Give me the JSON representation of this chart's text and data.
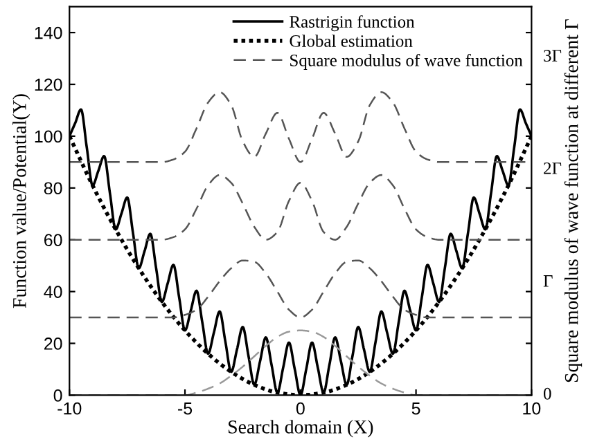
{
  "chart_data": {
    "type": "line",
    "xlabel": "Search domain (X)",
    "ylabel": "Function value/Potential(Y)",
    "y2label": "Square modulus of wave function at different Γ",
    "xlim": [
      -10,
      10
    ],
    "xticks": [
      -10,
      -5,
      0,
      5,
      10
    ],
    "ylim": [
      0,
      150
    ],
    "yticks": [
      0,
      20,
      40,
      60,
      80,
      100,
      120,
      140
    ],
    "annotations": [
      "0",
      "Γ",
      "2Γ",
      "3Γ"
    ],
    "legend": "top right",
    "grid": false,
    "series": [
      {
        "name": "Rastrigin function",
        "color": "#000000",
        "line_style": "solid",
        "x": [
          -10,
          -9.75,
          -9.5,
          -9.25,
          -9,
          -8.75,
          -8.5,
          -8.25,
          -8,
          -7.75,
          -7.5,
          -7.25,
          -7,
          -6.75,
          -6.5,
          -6.25,
          -6,
          -5.75,
          -5.5,
          -5.25,
          -5,
          -4.75,
          -4.5,
          -4.25,
          -4,
          -3.75,
          -3.5,
          -3.25,
          -3,
          -2.75,
          -2.5,
          -2.25,
          -2,
          -1.75,
          -1.5,
          -1.25,
          -1,
          -0.75,
          -0.5,
          -0.25,
          0,
          0.25,
          0.5,
          0.75,
          1,
          1.25,
          1.5,
          1.75,
          2,
          2.25,
          2.5,
          2.75,
          3,
          3.25,
          3.5,
          3.75,
          4,
          4.25,
          4.5,
          4.75,
          5,
          5.25,
          5.5,
          5.75,
          6,
          6.25,
          6.5,
          6.75,
          7,
          7.25,
          7.5,
          7.75,
          8,
          8.25,
          8.5,
          8.75,
          9,
          9.25,
          9.5,
          9.75,
          10
        ],
        "values": [
          100,
          105.1,
          110.3,
          95.6,
          81,
          86.6,
          92.3,
          78.1,
          64,
          70.1,
          76.3,
          62.6,
          49,
          55.6,
          62.3,
          49.1,
          36,
          43.1,
          50.3,
          37.6,
          25,
          32.6,
          40.3,
          28.1,
          16,
          24.1,
          32.3,
          20.6,
          9,
          17.6,
          26.3,
          15.1,
          4,
          13.1,
          22.3,
          11.6,
          1,
          10.6,
          20.3,
          10.1,
          0,
          10.1,
          20.3,
          10.6,
          1,
          11.6,
          22.3,
          13.1,
          4,
          15.1,
          26.3,
          17.6,
          9,
          20.6,
          32.3,
          24.1,
          16,
          28.1,
          40.3,
          32.6,
          25,
          37.6,
          50.3,
          43.1,
          36,
          49.1,
          62.3,
          55.6,
          49,
          62.6,
          76.3,
          70.1,
          64,
          78.1,
          92.3,
          86.6,
          81,
          95.6,
          110.3,
          105.1,
          100
        ]
      },
      {
        "name": "Global estimation",
        "color": "#000000",
        "line_style": "dotted",
        "x": [
          -10,
          -9,
          -8,
          -7,
          -6,
          -5,
          -4,
          -3,
          -2,
          -1,
          0,
          1,
          2,
          3,
          4,
          5,
          6,
          7,
          8,
          9,
          10
        ],
        "values": [
          100,
          81,
          64,
          49,
          36,
          25,
          16,
          9,
          4,
          1,
          0,
          1,
          4,
          9,
          16,
          25,
          36,
          49,
          64,
          81,
          100
        ]
      },
      {
        "name": "Square modulus of wave function",
        "color": "#555555",
        "line_style": "dashed",
        "x": [
          -10,
          -9.5,
          -9,
          -8.5,
          -8,
          -7.5,
          -7,
          -6.5,
          -6,
          -5.5,
          -5,
          -4.5,
          -4,
          -3.5,
          -3,
          -2.5,
          -2,
          -1.5,
          -1,
          -0.5,
          0,
          0.5,
          1,
          1.5,
          2,
          2.5,
          3,
          3.5,
          4,
          4.5,
          5,
          5.5,
          6,
          6.5,
          7,
          7.5,
          8,
          8.5,
          9,
          9.5,
          10
        ],
        "values": [
          90,
          90,
          90,
          90,
          90,
          90,
          90,
          90,
          90,
          91,
          94,
          103,
          113,
          117,
          112,
          98,
          92,
          101,
          109,
          99,
          90,
          99,
          109,
          101,
          92,
          98,
          112,
          117,
          113,
          103,
          94,
          91,
          90,
          90,
          90,
          90,
          90,
          90,
          90,
          90,
          90
        ]
      },
      {
        "color": "#555555",
        "line_style": "dashed",
        "x": [
          -10,
          -9.5,
          -9,
          -8.5,
          -8,
          -7.5,
          -7,
          -6.5,
          -6,
          -5.5,
          -5,
          -4.5,
          -4,
          -3.5,
          -3,
          -2.5,
          -2,
          -1.5,
          -1,
          -0.5,
          0,
          0.5,
          1,
          1.5,
          2,
          2.5,
          3,
          3.5,
          4,
          4.5,
          5,
          5.5,
          6,
          6.5,
          7,
          7.5,
          8,
          8.5,
          9,
          9.5,
          10
        ],
        "values": [
          60,
          60,
          60,
          60,
          60,
          60,
          60,
          60,
          60,
          61,
          64,
          72,
          81,
          85,
          82,
          74,
          65,
          60,
          63,
          75,
          82,
          75,
          63,
          60,
          65,
          74,
          82,
          85,
          81,
          72,
          64,
          61,
          60,
          60,
          60,
          60,
          60,
          60,
          60,
          60,
          60
        ]
      },
      {
        "color": "#555555",
        "line_style": "dashed",
        "x": [
          -10,
          -9.5,
          -9,
          -8.5,
          -8,
          -7.5,
          -7,
          -6.5,
          -6,
          -5.5,
          -5,
          -4.5,
          -4,
          -3.5,
          -3,
          -2.5,
          -2,
          -1.5,
          -1,
          -0.5,
          0,
          0.5,
          1,
          1.5,
          2,
          2.5,
          3,
          3.5,
          4,
          4.5,
          5,
          5.5,
          6,
          6.5,
          7,
          7.5,
          8,
          8.5,
          9,
          9.5,
          10
        ],
        "values": [
          30,
          30,
          30,
          30,
          30,
          30,
          30,
          30,
          30,
          30,
          31,
          33,
          38,
          44,
          49,
          52,
          51.5,
          47,
          40,
          33,
          30,
          33,
          40,
          47,
          51.5,
          52,
          49,
          44,
          38,
          33,
          31,
          30,
          30,
          30,
          30,
          30,
          30,
          30,
          30,
          30,
          30
        ]
      },
      {
        "color": "#999999",
        "line_style": "dashed",
        "x": [
          -10,
          -9.5,
          -9,
          -8.5,
          -8,
          -7.5,
          -7,
          -6.5,
          -6,
          -5.5,
          -5,
          -4.5,
          -4,
          -3.5,
          -3,
          -2.5,
          -2,
          -1.5,
          -1,
          -0.5,
          0,
          0.5,
          1,
          1.5,
          2,
          2.5,
          3,
          3.5,
          4,
          4.5,
          5,
          5.5,
          6,
          6.5,
          7,
          7.5,
          8,
          8.5,
          9,
          9.5,
          10
        ],
        "values": [
          0,
          0,
          0,
          0,
          0,
          0,
          0,
          0,
          0,
          0,
          0,
          1,
          2.5,
          4.5,
          7.5,
          11,
          15,
          19,
          22.5,
          24.5,
          25,
          24.5,
          22.5,
          19,
          15,
          11,
          7.5,
          4.5,
          2.5,
          1,
          0,
          0,
          0,
          0,
          0,
          0,
          0,
          0,
          0,
          0,
          0
        ]
      }
    ]
  }
}
